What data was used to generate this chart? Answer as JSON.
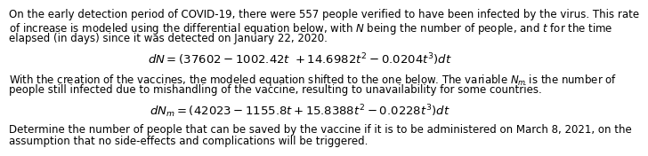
{
  "background_color": "#ffffff",
  "text_color": "#000000",
  "font_size_body": 8.5,
  "font_size_eq": 9.5,
  "paragraph1_line1": "On the early detection period of COVID-19, there were 557 people verified to have been infected by the virus. This rate",
  "paragraph1_line2": "of increase is modeled using the differential equation below, with $N$ being the number of people, and $t$ for the time",
  "paragraph1_line3": "elapsed (in days) since it was detected on January 22, 2020.",
  "equation1": "$dN = (37602 - 1002.42t\\ + 14.6982t^2 - 0.0204t^3)dt$",
  "paragraph2_line1": "With the creation of the vaccines, the modeled equation shifted to the one below. The variable $N_m$ is the number of",
  "paragraph2_line2": "people still infected due to mishandling of the vaccine, resulting to unavailability for some countries.",
  "equation2": "$dN_m = (42023 - 1155.8t + 15.8388t^2 - 0.0228t^3)dt$",
  "paragraph3_line1": "Determine the number of people that can be saved by the vaccine if it is to be administered on March 8, 2021, on the",
  "paragraph3_line2": "assumption that no side-effects and complications will be triggered."
}
